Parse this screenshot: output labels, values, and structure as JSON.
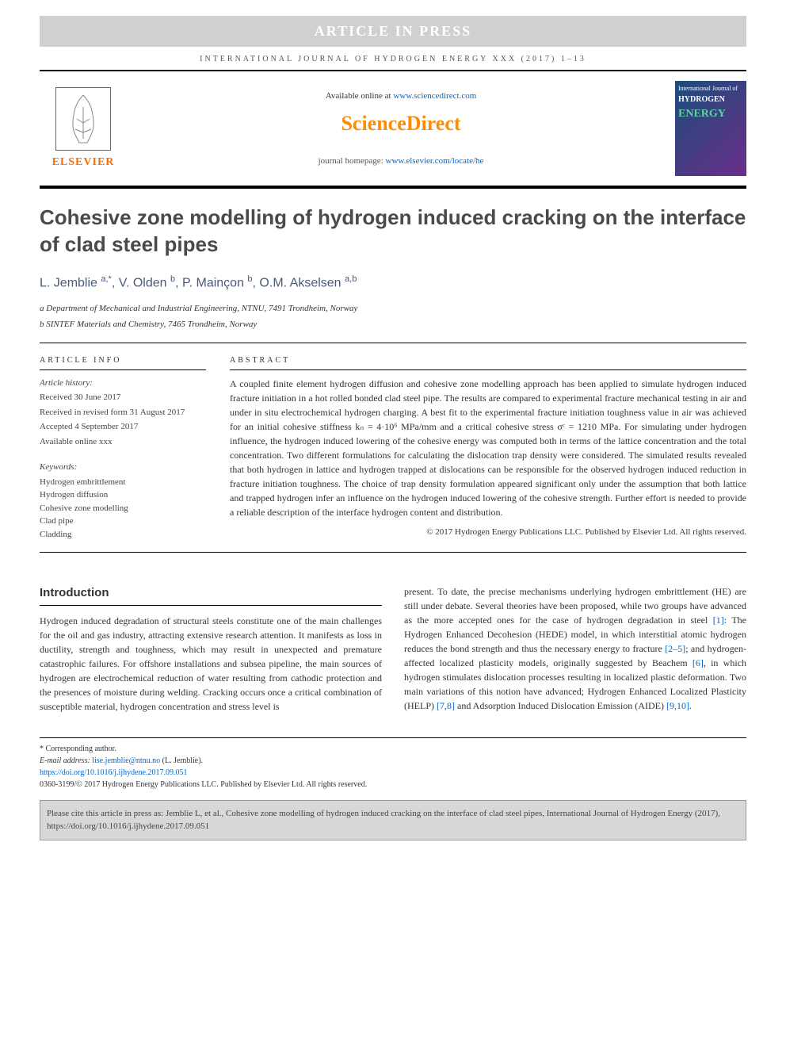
{
  "banner": {
    "text": "ARTICLE IN PRESS"
  },
  "journal": {
    "header_line": "INTERNATIONAL JOURNAL OF HYDROGEN ENERGY XXX (2017) 1–13",
    "available_prefix": "Available online at ",
    "available_url": "www.sciencedirect.com",
    "sd_logo": "ScienceDirect",
    "homepage_prefix": "journal homepage: ",
    "homepage_url": "www.elsevier.com/locate/he",
    "publisher_name": "ELSEVIER",
    "cover_top": "International Journal of",
    "cover_mid": "HYDROGEN",
    "cover_bot": "ENERGY"
  },
  "article": {
    "title": "Cohesive zone modelling of hydrogen induced cracking on the interface of clad steel pipes",
    "authors_html": "L. Jemblie <sup>a,*</sup>, V. Olden <sup>b</sup>, P. Mainçon <sup>b</sup>, O.M. Akselsen <sup>a,b</sup>",
    "affil_a": "a Department of Mechanical and Industrial Engineering, NTNU, 7491 Trondheim, Norway",
    "affil_b": "b SINTEF Materials and Chemistry, 7465 Trondheim, Norway"
  },
  "info": {
    "heading": "ARTICLE INFO",
    "history_label": "Article history:",
    "received": "Received 30 June 2017",
    "revised": "Received in revised form 31 August 2017",
    "accepted": "Accepted 4 September 2017",
    "online": "Available online xxx",
    "kw_label": "Keywords:",
    "keywords": [
      "Hydrogen embrittlement",
      "Hydrogen diffusion",
      "Cohesive zone modelling",
      "Clad pipe",
      "Cladding"
    ]
  },
  "abstract": {
    "heading": "ABSTRACT",
    "text": "A coupled finite element hydrogen diffusion and cohesive zone modelling approach has been applied to simulate hydrogen induced fracture initiation in a hot rolled bonded clad steel pipe. The results are compared to experimental fracture mechanical testing in air and under in situ electrochemical hydrogen charging. A best fit to the experimental fracture initiation toughness value in air was achieved for an initial cohesive stiffness kₙ = 4·10⁶ MPa/mm and a critical cohesive stress σᶜ = 1210 MPa. For simulating under hydrogen influence, the hydrogen induced lowering of the cohesive energy was computed both in terms of the lattice concentration and the total concentration. Two different formulations for calculating the dislocation trap density were considered. The simulated results revealed that both hydrogen in lattice and hydrogen trapped at dislocations can be responsible for the observed hydrogen induced reduction in fracture initiation toughness. The choice of trap density formulation appeared significant only under the assumption that both lattice and trapped hydrogen infer an influence on the hydrogen induced lowering of the cohesive strength. Further effort is needed to provide a reliable description of the interface hydrogen content and distribution.",
    "copyright": "© 2017 Hydrogen Energy Publications LLC. Published by Elsevier Ltd. All rights reserved."
  },
  "sections": {
    "intro_head": "Introduction",
    "col1": "Hydrogen induced degradation of structural steels constitute one of the main challenges for the oil and gas industry, attracting extensive research attention. It manifests as loss in ductility, strength and toughness, which may result in unexpected and premature catastrophic failures. For offshore installations and subsea pipeline, the main sources of hydrogen are electrochemical reduction of water resulting from cathodic protection and the presences of moisture during welding. Cracking occurs once a critical combination of susceptible material, hydrogen concentration and stress level is",
    "col2_p1": "present. To date, the precise mechanisms underlying hydrogen embrittlement (HE) are still under debate. Several theories have been proposed, while two groups have advanced as the more accepted ones for the case of hydrogen degradation in steel ",
    "col2_ref1": "[1]",
    "col2_p2": ": The Hydrogen Enhanced Decohesion (HEDE) model, in which interstitial atomic hydrogen reduces the bond strength and thus the necessary energy to fracture ",
    "col2_ref2": "[2–5]",
    "col2_p3": "; and hydrogen-affected localized plasticity models, originally suggested by Beachem ",
    "col2_ref3": "[6]",
    "col2_p4": ", in which hydrogen stimulates dislocation processes resulting in localized plastic deformation. Two main variations of this notion have advanced; Hydrogen Enhanced Localized Plasticity (HELP) ",
    "col2_ref4": "[7,8]",
    "col2_p5": " and Adsorption Induced Dislocation Emission (AIDE) ",
    "col2_ref5": "[9,10]",
    "col2_p6": "."
  },
  "footnotes": {
    "corr": "* Corresponding author.",
    "email_label": "E-mail address: ",
    "email": "lise.jemblie@ntnu.no",
    "email_name": " (L. Jemblie).",
    "doi": "https://doi.org/10.1016/j.ijhydene.2017.09.051",
    "issn": "0360-3199/© 2017 Hydrogen Energy Publications LLC. Published by Elsevier Ltd. All rights reserved."
  },
  "citebox": {
    "text": "Please cite this article in press as: Jemblie L, et al., Cohesive zone modelling of hydrogen induced cracking on the interface of clad steel pipes, International Journal of Hydrogen Energy (2017), https://doi.org/10.1016/j.ijhydene.2017.09.051"
  },
  "colors": {
    "link": "#0066cc",
    "publisher_orange": "#ff6b00",
    "sd_orange": "#ff8c00"
  }
}
